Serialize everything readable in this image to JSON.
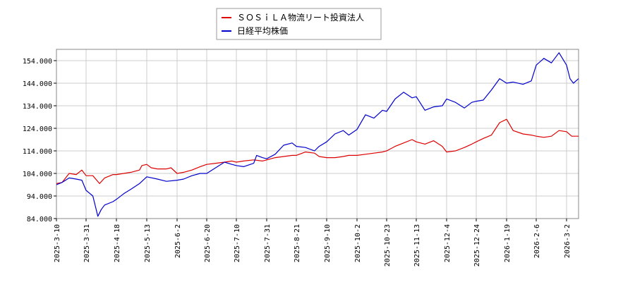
{
  "chart_data": {
    "type": "line",
    "title": "",
    "xlabel": "",
    "ylabel": "",
    "ylim": [
      84000,
      159000
    ],
    "y_ticks": [
      84000,
      94000,
      104000,
      114000,
      124000,
      134000,
      144000,
      154000
    ],
    "y_tick_labels": [
      "84.000",
      "94.000",
      "104.000",
      "114.000",
      "124.000",
      "134.000",
      "144.000",
      "154.000"
    ],
    "x_ticks": [
      "2025-3-10",
      "2025-3-31",
      "2025-4-18",
      "2025-5-13",
      "2025-6-2",
      "2025-6-20",
      "2025-7-10",
      "2025-7-31",
      "2025-8-21",
      "2025-9-10",
      "2025-10-2",
      "2025-10-23",
      "2025-11-13",
      "2025-12-4",
      "2025-12-24",
      "2026-1-19",
      "2026-2-6",
      "2026-3-2"
    ],
    "grid": true,
    "legend_position": "top-center",
    "series": [
      {
        "name": "ＳＯＳｉＬＡ物流リート投資法人",
        "color": "#dd0000",
        "points": [
          [
            "2025-3-10",
            99500
          ],
          [
            "2025-3-14",
            100000
          ],
          [
            "2025-3-19",
            104000
          ],
          [
            "2025-3-24",
            103500
          ],
          [
            "2025-3-28",
            105500
          ],
          [
            "2025-3-31",
            103000
          ],
          [
            "2025-4-4",
            103000
          ],
          [
            "2025-4-8",
            99500
          ],
          [
            "2025-4-11",
            102000
          ],
          [
            "2025-4-16",
            103500
          ],
          [
            "2025-4-18",
            103500
          ],
          [
            "2025-4-24",
            104000
          ],
          [
            "2025-4-30",
            104500
          ],
          [
            "2025-5-7",
            105500
          ],
          [
            "2025-5-9",
            107500
          ],
          [
            "2025-5-13",
            108000
          ],
          [
            "2025-5-16",
            106500
          ],
          [
            "2025-5-20",
            106000
          ],
          [
            "2025-5-26",
            106000
          ],
          [
            "2025-5-29",
            106500
          ],
          [
            "2025-6-2",
            104000
          ],
          [
            "2025-6-6",
            104500
          ],
          [
            "2025-6-11",
            105500
          ],
          [
            "2025-6-16",
            107000
          ],
          [
            "2025-6-20",
            108000
          ],
          [
            "2025-6-26",
            108500
          ],
          [
            "2025-7-2",
            109000
          ],
          [
            "2025-7-7",
            109500
          ],
          [
            "2025-7-10",
            109000
          ],
          [
            "2025-7-15",
            109500
          ],
          [
            "2025-7-22",
            110000
          ],
          [
            "2025-7-28",
            109500
          ],
          [
            "2025-7-31",
            110000
          ],
          [
            "2025-8-6",
            111000
          ],
          [
            "2025-8-12",
            111500
          ],
          [
            "2025-8-18",
            112000
          ],
          [
            "2025-8-21",
            112000
          ],
          [
            "2025-8-27",
            113500
          ],
          [
            "2025-9-2",
            113000
          ],
          [
            "2025-9-5",
            111500
          ],
          [
            "2025-9-10",
            111000
          ],
          [
            "2025-9-16",
            111000
          ],
          [
            "2025-9-22",
            111500
          ],
          [
            "2025-9-26",
            112000
          ],
          [
            "2025-10-2",
            112000
          ],
          [
            "2025-10-8",
            112500
          ],
          [
            "2025-10-14",
            113000
          ],
          [
            "2025-10-20",
            113500
          ],
          [
            "2025-10-23",
            114000
          ],
          [
            "2025-10-29",
            116000
          ],
          [
            "2025-11-4",
            117500
          ],
          [
            "2025-11-10",
            119000
          ],
          [
            "2025-11-13",
            118000
          ],
          [
            "2025-11-19",
            117000
          ],
          [
            "2025-11-25",
            118500
          ],
          [
            "2025-12-1",
            116000
          ],
          [
            "2025-12-4",
            113500
          ],
          [
            "2025-12-10",
            114000
          ],
          [
            "2025-12-16",
            115500
          ],
          [
            "2025-12-21",
            117000
          ],
          [
            "2025-12-24",
            118000
          ],
          [
            "2025-12-30",
            119500
          ],
          [
            "2026-1-6",
            121000
          ],
          [
            "2026-1-13",
            126500
          ],
          [
            "2026-1-19",
            128000
          ],
          [
            "2026-1-23",
            123000
          ],
          [
            "2026-1-29",
            121500
          ],
          [
            "2026-2-3",
            121000
          ],
          [
            "2026-2-6",
            120500
          ],
          [
            "2026-2-12",
            120000
          ],
          [
            "2026-2-18",
            120500
          ],
          [
            "2026-2-24",
            123000
          ],
          [
            "2026-3-2",
            122500
          ],
          [
            "2026-3-5",
            120500
          ],
          [
            "2026-3-9",
            120500
          ]
        ]
      },
      {
        "name": "日経平均株価",
        "color": "#0000cc",
        "points": [
          [
            "2025-3-10",
            99000
          ],
          [
            "2025-3-14",
            100000
          ],
          [
            "2025-3-19",
            102000
          ],
          [
            "2025-3-24",
            101500
          ],
          [
            "2025-3-28",
            101000
          ],
          [
            "2025-3-31",
            96500
          ],
          [
            "2025-4-4",
            94000
          ],
          [
            "2025-4-7",
            85000
          ],
          [
            "2025-4-9",
            88000
          ],
          [
            "2025-4-11",
            90000
          ],
          [
            "2025-4-16",
            91500
          ],
          [
            "2025-4-18",
            92500
          ],
          [
            "2025-4-24",
            95000
          ],
          [
            "2025-4-30",
            97000
          ],
          [
            "2025-5-7",
            99500
          ],
          [
            "2025-5-13",
            102500
          ],
          [
            "2025-5-20",
            101500
          ],
          [
            "2025-5-26",
            100500
          ],
          [
            "2025-6-2",
            101000
          ],
          [
            "2025-6-6",
            101500
          ],
          [
            "2025-6-11",
            103000
          ],
          [
            "2025-6-16",
            104000
          ],
          [
            "2025-6-20",
            104000
          ],
          [
            "2025-6-26",
            106500
          ],
          [
            "2025-7-2",
            109000
          ],
          [
            "2025-7-7",
            108000
          ],
          [
            "2025-7-10",
            107500
          ],
          [
            "2025-7-15",
            107000
          ],
          [
            "2025-7-22",
            108500
          ],
          [
            "2025-7-24",
            112000
          ],
          [
            "2025-7-28",
            111000
          ],
          [
            "2025-7-31",
            110500
          ],
          [
            "2025-8-6",
            112500
          ],
          [
            "2025-8-12",
            116500
          ],
          [
            "2025-8-18",
            117500
          ],
          [
            "2025-8-21",
            116000
          ],
          [
            "2025-8-27",
            115500
          ],
          [
            "2025-9-2",
            114000
          ],
          [
            "2025-9-5",
            116000
          ],
          [
            "2025-9-10",
            118000
          ],
          [
            "2025-9-16",
            121500
          ],
          [
            "2025-9-22",
            123000
          ],
          [
            "2025-9-26",
            121000
          ],
          [
            "2025-10-2",
            123500
          ],
          [
            "2025-10-8",
            130000
          ],
          [
            "2025-10-14",
            128500
          ],
          [
            "2025-10-20",
            132000
          ],
          [
            "2025-10-23",
            131500
          ],
          [
            "2025-10-29",
            137000
          ],
          [
            "2025-11-4",
            140000
          ],
          [
            "2025-11-10",
            137500
          ],
          [
            "2025-11-13",
            138000
          ],
          [
            "2025-11-19",
            132000
          ],
          [
            "2025-11-25",
            133500
          ],
          [
            "2025-12-1",
            134000
          ],
          [
            "2025-12-4",
            137000
          ],
          [
            "2025-12-10",
            135500
          ],
          [
            "2025-12-16",
            133000
          ],
          [
            "2025-12-21",
            135500
          ],
          [
            "2025-12-24",
            136000
          ],
          [
            "2025-12-30",
            136500
          ],
          [
            "2026-1-6",
            141000
          ],
          [
            "2026-1-13",
            146000
          ],
          [
            "2026-1-19",
            144000
          ],
          [
            "2026-1-23",
            144500
          ],
          [
            "2026-1-29",
            143500
          ],
          [
            "2026-2-3",
            145000
          ],
          [
            "2026-2-6",
            152000
          ],
          [
            "2026-2-12",
            155000
          ],
          [
            "2026-2-18",
            153000
          ],
          [
            "2026-2-24",
            157500
          ],
          [
            "2026-3-2",
            152000
          ],
          [
            "2026-3-4",
            146000
          ],
          [
            "2026-3-6",
            144000
          ],
          [
            "2026-3-9",
            146000
          ]
        ]
      }
    ]
  }
}
